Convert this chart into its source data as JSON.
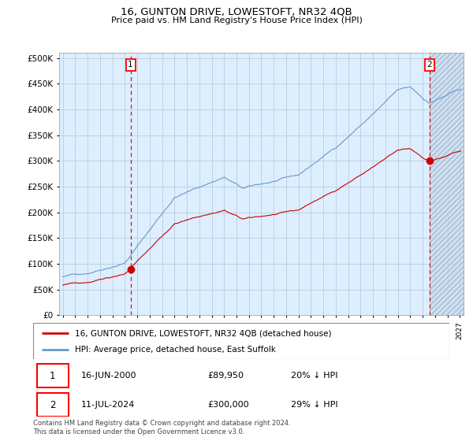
{
  "title": "16, GUNTON DRIVE, LOWESTOFT, NR32 4QB",
  "subtitle": "Price paid vs. HM Land Registry's House Price Index (HPI)",
  "hpi_label": "HPI: Average price, detached house, East Suffolk",
  "property_label": "16, GUNTON DRIVE, LOWESTOFT, NR32 4QB (detached house)",
  "transaction1_date": "16-JUN-2000",
  "transaction1_price": 89950,
  "transaction1_hpi_pct": "20% ↓ HPI",
  "transaction2_date": "11-JUL-2024",
  "transaction2_price": 300000,
  "transaction2_hpi_pct": "29% ↓ HPI",
  "footer": "Contains HM Land Registry data © Crown copyright and database right 2024.\nThis data is licensed under the Open Government Licence v3.0.",
  "hpi_color": "#6699cc",
  "property_color": "#cc0000",
  "chart_bg_color": "#ddeeff",
  "background_color": "#ffffff",
  "grid_color": "#bbccdd",
  "ylim": [
    0,
    500000
  ],
  "yticks": [
    0,
    50000,
    100000,
    150000,
    200000,
    250000,
    300000,
    350000,
    400000,
    450000,
    500000
  ],
  "t_sale1": 2000.458,
  "t_sale2": 2024.542,
  "xlim_start": 1994.7,
  "xlim_end": 2027.3
}
